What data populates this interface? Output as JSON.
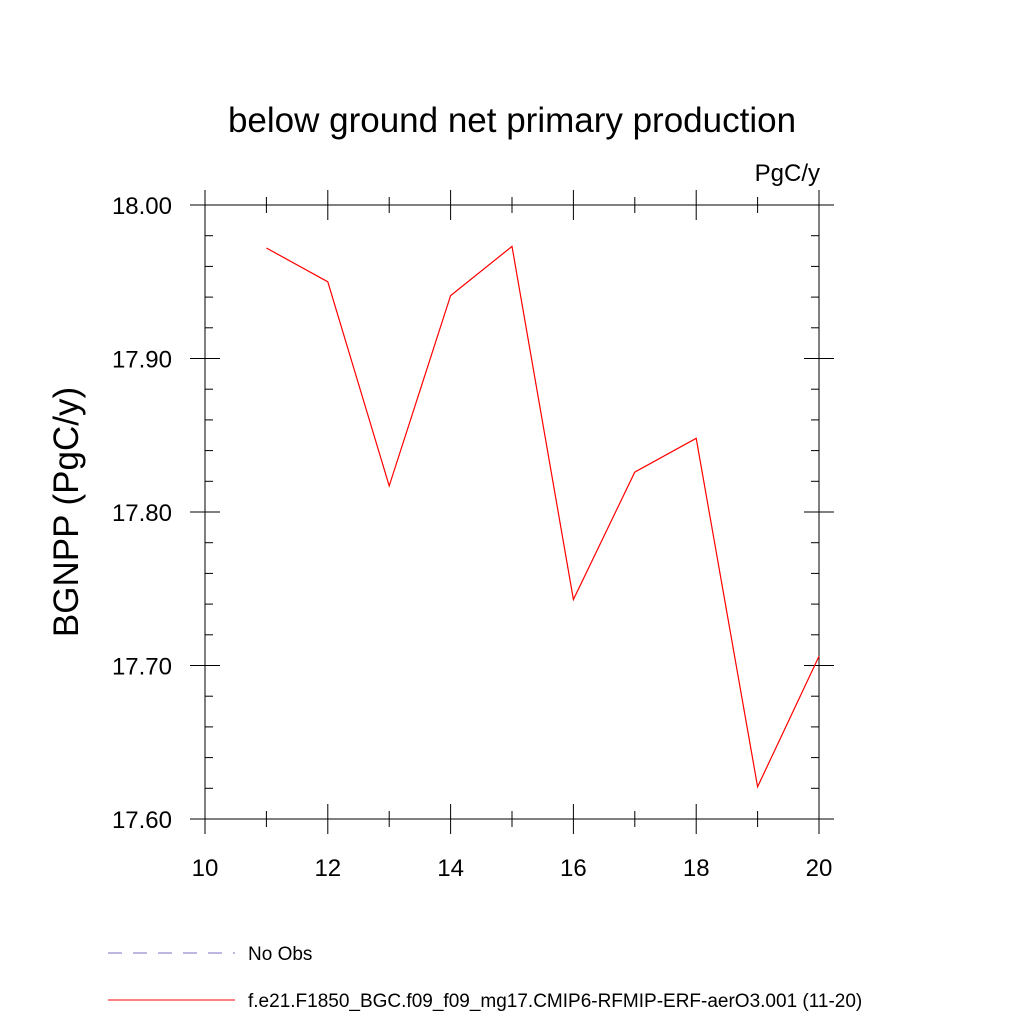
{
  "chart_data": {
    "type": "line",
    "title": "below ground net primary production",
    "units": "PgC/y",
    "xlabel": "",
    "ylabel": "BGNPP  (PgC/y)",
    "xlim": [
      10,
      20
    ],
    "ylim": [
      17.6,
      18.0
    ],
    "x_ticks": [
      10,
      12,
      14,
      16,
      18,
      20
    ],
    "x_tick_labels": [
      "10",
      "12",
      "14",
      "16",
      "18",
      "20"
    ],
    "y_ticks": [
      17.6,
      17.7,
      17.8,
      17.9,
      18.0
    ],
    "y_tick_labels": [
      "17.60",
      "17.70",
      "17.80",
      "17.90",
      "18.00"
    ],
    "x_minor_step": 1,
    "y_minor_step": 0.02,
    "grid": false,
    "legend_position": "bottom-left",
    "series": [
      {
        "name": "f.e21.F1850_BGC.f09_f09_mg17.CMIP6-RFMIP-ERF-aerO3.001 (11-20)",
        "color": "#ff0000",
        "dash": "solid",
        "x": [
          11,
          12,
          13,
          14,
          15,
          16,
          17,
          18,
          19,
          20
        ],
        "values": [
          17.972,
          17.95,
          17.817,
          17.941,
          17.973,
          17.743,
          17.826,
          17.848,
          17.621,
          17.706
        ]
      }
    ],
    "legend": [
      {
        "label": "No Obs",
        "color": "#7b6fc6",
        "dash": "dashed"
      },
      {
        "label": "f.e21.F1850_BGC.f09_f09_mg17.CMIP6-RFMIP-ERF-aerO3.001 (11-20)",
        "color": "#ff0000",
        "dash": "solid"
      }
    ]
  }
}
